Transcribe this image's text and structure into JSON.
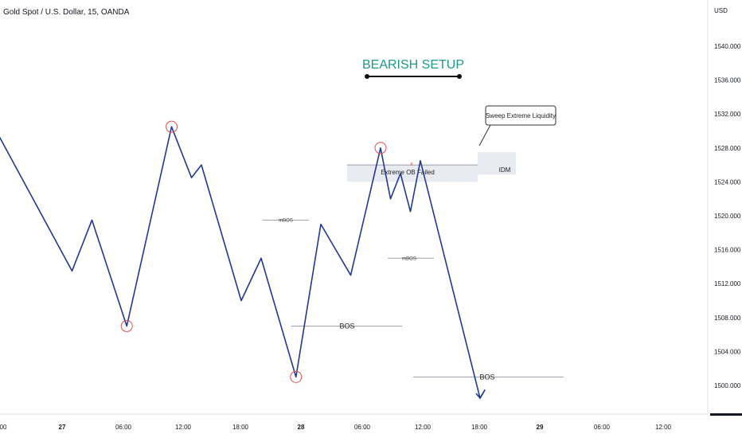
{
  "header": {
    "symbol_title": "Gold Spot / U.S. Dollar, 15, OANDA"
  },
  "price_axis": {
    "currency": "USD",
    "ticks": [
      "1540.000",
      "1536.000",
      "1532.000",
      "1528.000",
      "1524.000",
      "1520.000",
      "1516.000",
      "1512.000",
      "1508.000",
      "1504.000",
      "1500.000"
    ]
  },
  "time_axis": {
    "ticks": [
      {
        "label": "00",
        "bold": false
      },
      {
        "label": "27",
        "bold": true
      },
      {
        "label": "06:00",
        "bold": false
      },
      {
        "label": "12:00",
        "bold": false
      },
      {
        "label": "18:00",
        "bold": false
      },
      {
        "label": "28",
        "bold": true
      },
      {
        "label": "06:00",
        "bold": false
      },
      {
        "label": "12:00",
        "bold": false
      },
      {
        "label": "18:00",
        "bold": false
      },
      {
        "label": "29",
        "bold": true
      },
      {
        "label": "06:00",
        "bold": false
      },
      {
        "label": "12:00",
        "bold": false
      }
    ]
  },
  "colors": {
    "path": "#1f3a93",
    "marker": "#e05050",
    "zone": "#e9ebf2",
    "accent": "#1a9a8a",
    "line": "#9aa0a8"
  },
  "chart_data": {
    "type": "line",
    "title": "BEARISH SETUP",
    "xlabel": "",
    "ylabel": "USD",
    "ylim": [
      1497.5,
      1544
    ],
    "series": [
      {
        "points": [
          {
            "t": "26 16:00",
            "y": 1533.0
          },
          {
            "t": "27 01:00",
            "y": 1513.5
          },
          {
            "t": "27 03:00",
            "y": 1519.5
          },
          {
            "t": "27 06:30",
            "y": 1507.0
          },
          {
            "t": "27 11:00",
            "y": 1530.5
          },
          {
            "t": "27 13:00",
            "y": 1524.5
          },
          {
            "t": "27 14:00",
            "y": 1526.0
          },
          {
            "t": "27 18:00",
            "y": 1510.0
          },
          {
            "t": "27 20:00",
            "y": 1515.0
          },
          {
            "t": "27 23:30",
            "y": 1501.0
          },
          {
            "t": "28 02:00",
            "y": 1519.0
          },
          {
            "t": "28 05:00",
            "y": 1513.0
          },
          {
            "t": "28 08:00",
            "y": 1528.0
          },
          {
            "t": "28 09:00",
            "y": 1522.0
          },
          {
            "t": "28 10:00",
            "y": 1525.0
          },
          {
            "t": "28 11:00",
            "y": 1520.5
          },
          {
            "t": "28 12:00",
            "y": 1526.5
          },
          {
            "t": "28 18:00",
            "y": 1498.5
          },
          {
            "t": "28 18:30",
            "y": 1499.5
          }
        ]
      }
    ],
    "annotations": [
      {
        "type": "level",
        "label": "mBOS",
        "y": 1519.5
      },
      {
        "type": "level",
        "label": "BOS",
        "y": 1507.0
      },
      {
        "type": "level",
        "label": "mBOS",
        "y": 1515.0
      },
      {
        "type": "level",
        "label": "BOS",
        "y": 1501.0
      },
      {
        "type": "zone",
        "label": "Extreme OB Failed",
        "y_top": 1526.0,
        "y_bottom": 1524.0
      },
      {
        "type": "zone",
        "label": "",
        "y_top": 1527.5,
        "y_bottom": 1526.0
      },
      {
        "type": "text",
        "label": "IDM",
        "y": 1525.0
      },
      {
        "type": "callout",
        "label": "Sweep Extreme Liquidity"
      },
      {
        "type": "circle",
        "t": "27 06:30",
        "y": 1507.0
      },
      {
        "type": "circle",
        "t": "27 11:00",
        "y": 1530.5
      },
      {
        "type": "circle",
        "t": "27 23:30",
        "y": 1501.0
      },
      {
        "type": "circle",
        "t": "28 08:00",
        "y": 1528.0
      }
    ]
  }
}
